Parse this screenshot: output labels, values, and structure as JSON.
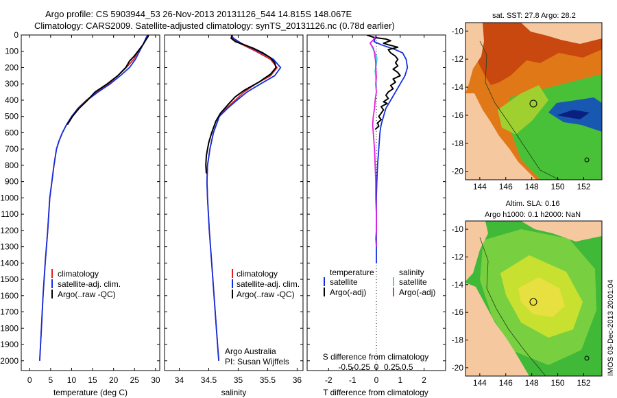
{
  "header": {
    "line1": "Argo profile: CS 5903944_53 26-Nov-2013 20131126_544 14.815S 148.067E",
    "line2": "Climatology: CARS2009. Satellite-adjusted climatology: synTS_20131126.nc (0.78d earlier)"
  },
  "colors": {
    "climatology": "#e02020",
    "satellite": "#1030e0",
    "argo": "#000000",
    "sal_satellite": "#20e0e0",
    "sal_argo": "#e020e0",
    "land": "#f5c8a0"
  },
  "depth_axis": {
    "range": [
      0,
      2060
    ],
    "ticks": [
      0,
      100,
      200,
      300,
      400,
      500,
      600,
      700,
      800,
      900,
      1000,
      1100,
      1200,
      1300,
      1400,
      1500,
      1600,
      1700,
      1800,
      1900,
      2000
    ]
  },
  "chart_data": [
    {
      "type": "line",
      "id": "temperature",
      "xlabel": "temperature (deg C)",
      "xlim": [
        -2,
        31
      ],
      "xticks": [
        0,
        5,
        10,
        15,
        20,
        25,
        30
      ],
      "legend": [
        "climatology",
        "satellite-adj. clim.",
        "Argo(..raw -QC)"
      ],
      "series": [
        {
          "name": "climatology",
          "color": "#e02020",
          "points": [
            [
              28.2,
              0
            ],
            [
              27.8,
              20
            ],
            [
              27.0,
              60
            ],
            [
              25.9,
              100
            ],
            [
              24.8,
              150
            ],
            [
              23.0,
              200
            ],
            [
              21.0,
              250
            ],
            [
              18.8,
              300
            ],
            [
              16.0,
              350
            ],
            [
              13.5,
              400
            ],
            [
              11.5,
              450
            ],
            [
              10.0,
              500
            ],
            [
              8.8,
              550
            ],
            [
              7.8,
              600
            ],
            [
              7.0,
              650
            ],
            [
              6.4,
              700
            ],
            [
              5.8,
              800
            ],
            [
              5.3,
              900
            ],
            [
              4.8,
              1000
            ],
            [
              4.3,
              1200
            ],
            [
              3.7,
              1400
            ],
            [
              3.2,
              1600
            ],
            [
              2.8,
              1800
            ],
            [
              2.4,
              2000
            ]
          ]
        },
        {
          "name": "satellite-adj. clim.",
          "color": "#1030e0",
          "points": [
            [
              28.1,
              0
            ],
            [
              27.7,
              20
            ],
            [
              27.0,
              60
            ],
            [
              26.2,
              100
            ],
            [
              25.2,
              150
            ],
            [
              23.8,
              200
            ],
            [
              21.6,
              250
            ],
            [
              19.2,
              300
            ],
            [
              16.3,
              350
            ],
            [
              13.7,
              400
            ],
            [
              11.6,
              450
            ],
            [
              10.0,
              500
            ],
            [
              8.8,
              550
            ],
            [
              7.8,
              600
            ],
            [
              7.0,
              650
            ],
            [
              6.4,
              700
            ],
            [
              5.8,
              800
            ],
            [
              5.3,
              900
            ],
            [
              4.8,
              1000
            ],
            [
              4.3,
              1200
            ],
            [
              3.7,
              1400
            ],
            [
              3.2,
              1600
            ],
            [
              2.8,
              1800
            ],
            [
              2.4,
              2000
            ]
          ]
        },
        {
          "name": "Argo(..raw -QC)",
          "color": "#000000",
          "points": [
            [
              28.3,
              0
            ],
            [
              28.2,
              10
            ],
            [
              27.7,
              30
            ],
            [
              27.0,
              60
            ],
            [
              25.8,
              100
            ],
            [
              24.9,
              130
            ],
            [
              23.8,
              160
            ],
            [
              22.9,
              200
            ],
            [
              21.0,
              250
            ],
            [
              18.5,
              300
            ],
            [
              15.6,
              350
            ],
            [
              13.8,
              400
            ],
            [
              11.8,
              450
            ],
            [
              10.2,
              500
            ],
            [
              9.0,
              550
            ]
          ]
        }
      ]
    },
    {
      "type": "line",
      "id": "salinity",
      "xlabel": "salinity",
      "xlim": [
        33.75,
        36.1
      ],
      "xticks": [
        34,
        34.5,
        35,
        35.5,
        36
      ],
      "legend": [
        "climatology",
        "satellite-adj. clim.",
        "Argo(..raw -QC)"
      ],
      "series": [
        {
          "name": "climatology",
          "color": "#e02020",
          "points": [
            [
              34.88,
              0
            ],
            [
              34.9,
              20
            ],
            [
              35.02,
              50
            ],
            [
              35.3,
              100
            ],
            [
              35.55,
              150
            ],
            [
              35.66,
              200
            ],
            [
              35.55,
              250
            ],
            [
              35.3,
              300
            ],
            [
              35.1,
              350
            ],
            [
              34.95,
              400
            ],
            [
              34.8,
              450
            ],
            [
              34.68,
              500
            ],
            [
              34.58,
              600
            ],
            [
              34.52,
              700
            ],
            [
              34.48,
              800
            ],
            [
              34.47,
              900
            ],
            [
              34.48,
              1000
            ],
            [
              34.51,
              1200
            ],
            [
              34.55,
              1400
            ],
            [
              34.59,
              1600
            ],
            [
              34.63,
              1800
            ],
            [
              34.67,
              2000
            ]
          ]
        },
        {
          "name": "satellite-adj. clim.",
          "color": "#1030e0",
          "points": [
            [
              34.88,
              0
            ],
            [
              34.92,
              20
            ],
            [
              35.05,
              50
            ],
            [
              35.34,
              100
            ],
            [
              35.6,
              150
            ],
            [
              35.72,
              200
            ],
            [
              35.62,
              250
            ],
            [
              35.38,
              300
            ],
            [
              35.15,
              350
            ],
            [
              34.98,
              400
            ],
            [
              34.82,
              450
            ],
            [
              34.68,
              500
            ],
            [
              34.58,
              600
            ],
            [
              34.52,
              700
            ],
            [
              34.48,
              800
            ],
            [
              34.47,
              900
            ],
            [
              34.48,
              1000
            ],
            [
              34.51,
              1200
            ],
            [
              34.55,
              1400
            ],
            [
              34.59,
              1600
            ],
            [
              34.63,
              1800
            ],
            [
              34.67,
              2000
            ]
          ]
        },
        {
          "name": "Argo(..raw -QC)",
          "color": "#000000",
          "points": [
            [
              34.9,
              0
            ],
            [
              34.88,
              20
            ],
            [
              34.95,
              40
            ],
            [
              35.1,
              60
            ],
            [
              35.25,
              80
            ],
            [
              35.42,
              110
            ],
            [
              35.55,
              140
            ],
            [
              35.62,
              170
            ],
            [
              35.64,
              200
            ],
            [
              35.55,
              240
            ],
            [
              35.35,
              290
            ],
            [
              35.1,
              340
            ],
            [
              34.95,
              380
            ],
            [
              34.82,
              430
            ],
            [
              34.7,
              480
            ],
            [
              34.62,
              530
            ],
            [
              34.55,
              600
            ],
            [
              34.5,
              660
            ],
            [
              34.46,
              740
            ],
            [
              34.45,
              800
            ],
            [
              34.46,
              850
            ]
          ]
        }
      ]
    },
    {
      "type": "line",
      "id": "difference",
      "xlabel": "T difference from climatology",
      "xlim_T": [
        -2.9,
        2.9
      ],
      "xticks_T": [
        -2,
        -1,
        0,
        1,
        2
      ],
      "second_axis_label": "S difference from climatology",
      "xticks_S": [
        -0.5,
        -0.25,
        0,
        0.25,
        0.5
      ],
      "xticks_S_labels": [
        "-0.5",
        "-0.25",
        "0",
        "0.25",
        "0.5"
      ],
      "s_scale": 2.6,
      "legend_temperature_title": "temperature",
      "legend_salinity_title": "salinity",
      "legend_temperature": [
        "satellite",
        "Argo(-adj)"
      ],
      "legend_salinity": [
        "satellite",
        "Argo(-adj)"
      ],
      "series": [
        {
          "name": "T satellite",
          "color": "#1030e0",
          "axis": "T",
          "points": [
            [
              0.0,
              0
            ],
            [
              -0.1,
              40
            ],
            [
              0.2,
              60
            ],
            [
              0.8,
              90
            ],
            [
              1.1,
              110
            ],
            [
              1.25,
              150
            ],
            [
              1.3,
              200
            ],
            [
              1.2,
              250
            ],
            [
              1.0,
              300
            ],
            [
              0.8,
              350
            ],
            [
              0.6,
              400
            ],
            [
              0.4,
              450
            ],
            [
              0.3,
              500
            ],
            [
              0.2,
              550
            ],
            [
              0.15,
              600
            ],
            [
              0.1,
              700
            ],
            [
              0.05,
              800
            ],
            [
              0.02,
              900
            ],
            [
              0,
              1000
            ],
            [
              0,
              1400
            ]
          ]
        },
        {
          "name": "T Argo(-adj)",
          "color": "#000000",
          "axis": "T",
          "points": [
            [
              -0.4,
              0
            ],
            [
              -0.1,
              15
            ],
            [
              0.4,
              25
            ],
            [
              0.6,
              35
            ],
            [
              0.3,
              50
            ],
            [
              0.5,
              60
            ],
            [
              0.9,
              75
            ],
            [
              0.5,
              90
            ],
            [
              0.6,
              110
            ],
            [
              0.8,
              130
            ],
            [
              0.9,
              150
            ],
            [
              0.8,
              170
            ],
            [
              0.9,
              190
            ],
            [
              0.7,
              210
            ],
            [
              0.9,
              230
            ],
            [
              1.0,
              250
            ],
            [
              0.7,
              270
            ],
            [
              0.8,
              290
            ],
            [
              0.6,
              310
            ],
            [
              0.7,
              330
            ],
            [
              0.5,
              350
            ],
            [
              0.4,
              370
            ],
            [
              0.5,
              390
            ],
            [
              0.3,
              410
            ],
            [
              0.45,
              420
            ],
            [
              0.2,
              440
            ],
            [
              0.3,
              460
            ],
            [
              0.2,
              480
            ],
            [
              0.1,
              500
            ],
            [
              0.2,
              520
            ],
            [
              0.05,
              540
            ],
            [
              0.1,
              560
            ],
            [
              -0.05,
              580
            ]
          ]
        },
        {
          "name": "S satellite",
          "color": "#20e0e0",
          "axis": "S",
          "points": [
            [
              -0.1,
              50
            ],
            [
              -0.06,
              80
            ],
            [
              -0.02,
              110
            ],
            [
              0.01,
              140
            ],
            [
              0,
              180
            ],
            [
              -0.02,
              220
            ],
            [
              -0.01,
              260
            ],
            [
              0,
              320
            ]
          ]
        },
        {
          "name": "S Argo(-adj)",
          "color": "#e020e0",
          "axis": "S",
          "points": [
            [
              0,
              0
            ],
            [
              -0.05,
              30
            ],
            [
              -0.1,
              50
            ],
            [
              -0.05,
              80
            ],
            [
              -0.03,
              110
            ],
            [
              -0.02,
              140
            ],
            [
              -0.01,
              170
            ],
            [
              -0.01,
              200
            ],
            [
              0,
              260
            ],
            [
              -0.01,
              300
            ],
            [
              0,
              350
            ],
            [
              -0.02,
              400
            ],
            [
              -0.03,
              450
            ],
            [
              -0.05,
              500
            ],
            [
              -0.06,
              550
            ],
            [
              -0.05,
              600
            ],
            [
              -0.04,
              650
            ],
            [
              -0.03,
              700
            ],
            [
              -0.02,
              800
            ],
            [
              -0.01,
              900
            ],
            [
              -0.01,
              1000
            ],
            [
              0,
              1100
            ],
            [
              0,
              1200
            ],
            [
              -0.01,
              1250
            ],
            [
              0,
              1300
            ]
          ]
        }
      ]
    }
  ],
  "annotations": {
    "institution": "Argo Australia",
    "pi": "PI: Susan Wijffels"
  },
  "map_top": {
    "title": "sat. SST: 27.8 Argo: 28.2",
    "xticks": [
      "144",
      "146",
      "148",
      "150",
      "152"
    ],
    "yticks": [
      "-10",
      "-12",
      "-14",
      "-16",
      "-18",
      "-20"
    ]
  },
  "map_bottom": {
    "title1": "Altim. SLA: 0.16",
    "title2": "Argo h1000: 0.1 h2000: NaN",
    "xticks": [
      "144",
      "146",
      "148",
      "150",
      "152"
    ],
    "yticks": [
      "-10",
      "-12",
      "-14",
      "-16",
      "-18",
      "-20"
    ]
  },
  "side_label": "IMOS 03-Dec-2013 20:01:04"
}
